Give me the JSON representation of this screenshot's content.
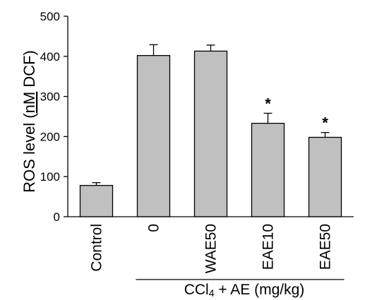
{
  "chart_data": {
    "type": "bar",
    "ylabel": "ROS level (nM DCF)",
    "ylabel_parts": [
      "ROS level (",
      "nM",
      " DCF)"
    ],
    "ylim": [
      0,
      500
    ],
    "yticks": [
      0,
      100,
      200,
      300,
      400,
      500
    ],
    "categories": [
      "Control",
      "0",
      "WAE50",
      "EAE10",
      "EAE50"
    ],
    "values": [
      78,
      402,
      413,
      233,
      198
    ],
    "errors": [
      7,
      27,
      15,
      25,
      12
    ],
    "significance": [
      "",
      "",
      "",
      "*",
      "*"
    ],
    "group_label": "CCl4 + AE (mg/kg)",
    "group_label_parts": [
      "CCl",
      "4",
      " + AE (mg/kg)"
    ],
    "group_span": [
      "0",
      "EAE50"
    ],
    "bar_color": "#c0c0c0",
    "grid": false
  }
}
